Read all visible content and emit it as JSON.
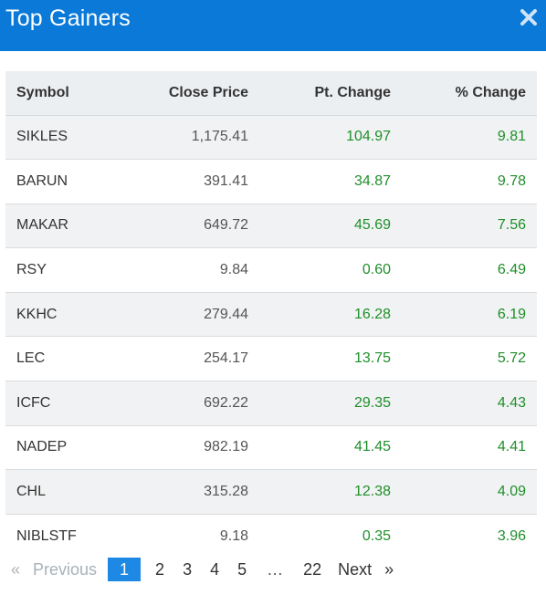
{
  "modal": {
    "title": "Top Gainers",
    "close_icon": "close-icon",
    "header_color": "#0a79d8"
  },
  "table": {
    "columns": {
      "symbol": "Symbol",
      "close_price": "Close Price",
      "pt_change": "Pt. Change",
      "pct_change": "% Change"
    },
    "rows": [
      {
        "symbol": "SIKLES",
        "close_price": "1,175.41",
        "pt_change": "104.97",
        "pct_change": "9.81"
      },
      {
        "symbol": "BARUN",
        "close_price": "391.41",
        "pt_change": "34.87",
        "pct_change": "9.78"
      },
      {
        "symbol": "MAKAR",
        "close_price": "649.72",
        "pt_change": "45.69",
        "pct_change": "7.56"
      },
      {
        "symbol": "RSY",
        "close_price": "9.84",
        "pt_change": "0.60",
        "pct_change": "6.49"
      },
      {
        "symbol": "KKHC",
        "close_price": "279.44",
        "pt_change": "16.28",
        "pct_change": "6.19"
      },
      {
        "symbol": "LEC",
        "close_price": "254.17",
        "pt_change": "13.75",
        "pct_change": "5.72"
      },
      {
        "symbol": "ICFC",
        "close_price": "692.22",
        "pt_change": "29.35",
        "pct_change": "4.43"
      },
      {
        "symbol": "NADEP",
        "close_price": "982.19",
        "pt_change": "41.45",
        "pct_change": "4.41"
      },
      {
        "symbol": "CHL",
        "close_price": "315.28",
        "pt_change": "12.38",
        "pct_change": "4.09"
      },
      {
        "symbol": "NIBLSTF",
        "close_price": "9.18",
        "pt_change": "0.35",
        "pct_change": "3.96"
      }
    ],
    "gain_color": "#1f8f2a"
  },
  "pagination": {
    "prev_arrow": "«",
    "prev_label": "Previous",
    "pages": [
      "1",
      "2",
      "3",
      "4",
      "5"
    ],
    "active_page": "1",
    "ellipsis": "…",
    "last_page": "22",
    "next_label": "Next",
    "next_arrow": "»",
    "active_color": "#1e88e5"
  }
}
